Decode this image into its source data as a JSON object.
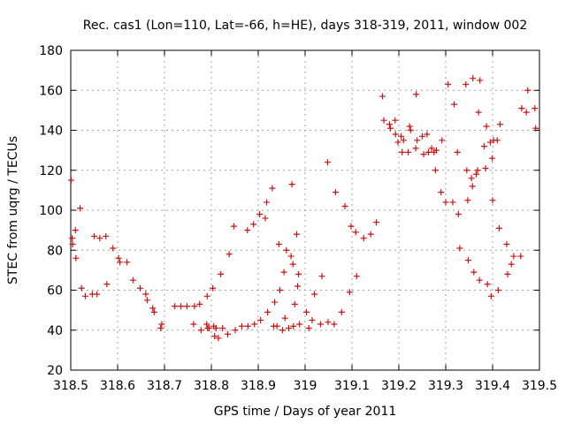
{
  "chart_data": {
    "type": "scatter",
    "title": "Rec. cas1 (Lon=110, Lat=-66, h=HE), days 318-319, 2011, window 002",
    "xlabel": "GPS time / Days of year 2011",
    "ylabel": "STEC from uqrg / TECUs",
    "xlim": [
      318.5,
      319.5
    ],
    "ylim": [
      20,
      180
    ],
    "grid": true,
    "marker": "+",
    "color": "#d01010",
    "xticks": [
      318.5,
      318.6,
      318.7,
      318.8,
      318.9,
      319,
      319.1,
      319.2,
      319.3,
      319.4,
      319.5
    ],
    "xtick_labels": [
      "318.5",
      "318.6",
      "318.7",
      "318.8",
      "318.9",
      "319",
      "319.1",
      "319.2",
      "319.3",
      "319.4",
      "319.5"
    ],
    "yticks": [
      20,
      40,
      60,
      80,
      100,
      120,
      140,
      160,
      180
    ],
    "ytick_labels": [
      "20",
      "40",
      "60",
      "80",
      "100",
      "120",
      "140",
      "160",
      "180"
    ],
    "series": [
      {
        "name": "STEC",
        "points": [
          [
            318.501,
            115
          ],
          [
            318.503,
            86
          ],
          [
            318.504,
            83
          ],
          [
            318.51,
            90
          ],
          [
            318.511,
            76
          ],
          [
            318.52,
            101
          ],
          [
            318.523,
            61
          ],
          [
            318.531,
            57
          ],
          [
            318.546,
            58
          ],
          [
            318.55,
            87
          ],
          [
            318.556,
            58
          ],
          [
            318.562,
            86
          ],
          [
            318.575,
            87
          ],
          [
            318.577,
            63
          ],
          [
            318.59,
            81
          ],
          [
            318.602,
            76
          ],
          [
            318.605,
            74
          ],
          [
            318.62,
            74
          ],
          [
            318.633,
            65
          ],
          [
            318.648,
            61
          ],
          [
            318.66,
            58
          ],
          [
            318.663,
            55
          ],
          [
            318.675,
            51
          ],
          [
            318.678,
            49
          ],
          [
            318.692,
            41
          ],
          [
            318.694,
            43
          ],
          [
            318.722,
            52
          ],
          [
            318.735,
            52
          ],
          [
            318.748,
            52
          ],
          [
            318.762,
            43
          ],
          [
            318.764,
            52
          ],
          [
            318.775,
            53
          ],
          [
            318.778,
            40
          ],
          [
            318.79,
            43
          ],
          [
            318.792,
            41
          ],
          [
            318.791,
            57
          ],
          [
            318.795,
            41
          ],
          [
            318.803,
            61
          ],
          [
            318.805,
            42
          ],
          [
            318.807,
            37
          ],
          [
            318.81,
            41
          ],
          [
            318.815,
            36
          ],
          [
            318.82,
            68
          ],
          [
            318.824,
            41
          ],
          [
            318.835,
            38
          ],
          [
            318.838,
            78
          ],
          [
            318.848,
            92
          ],
          [
            318.851,
            40
          ],
          [
            318.865,
            42
          ],
          [
            318.877,
            90
          ],
          [
            318.878,
            42
          ],
          [
            318.89,
            93
          ],
          [
            318.892,
            43
          ],
          [
            318.903,
            98
          ],
          [
            318.905,
            45
          ],
          [
            318.915,
            96
          ],
          [
            318.918,
            104
          ],
          [
            318.92,
            49
          ],
          [
            318.93,
            111
          ],
          [
            318.933,
            42
          ],
          [
            318.935,
            54
          ],
          [
            318.94,
            42
          ],
          [
            318.944,
            83
          ],
          [
            318.946,
            60
          ],
          [
            318.952,
            40
          ],
          [
            318.955,
            69
          ],
          [
            318.957,
            46
          ],
          [
            318.96,
            80
          ],
          [
            318.965,
            41
          ],
          [
            318.97,
            77
          ],
          [
            318.972,
            113
          ],
          [
            318.974,
            73
          ],
          [
            318.975,
            42
          ],
          [
            318.978,
            53
          ],
          [
            318.982,
            88
          ],
          [
            318.984,
            62
          ],
          [
            318.986,
            68
          ],
          [
            318.988,
            43
          ],
          [
            319.003,
            49
          ],
          [
            319.008,
            41
          ],
          [
            319.015,
            45
          ],
          [
            319.02,
            58
          ],
          [
            319.033,
            43
          ],
          [
            319.036,
            67
          ],
          [
            319.048,
            124
          ],
          [
            319.049,
            44
          ],
          [
            319.062,
            43
          ],
          [
            319.065,
            109
          ],
          [
            319.078,
            49
          ],
          [
            319.085,
            102
          ],
          [
            319.095,
            59
          ],
          [
            319.098,
            92
          ],
          [
            319.108,
            89
          ],
          [
            319.11,
            67
          ],
          [
            319.125,
            86
          ],
          [
            319.14,
            88
          ],
          [
            319.152,
            94
          ],
          [
            319.165,
            157
          ],
          [
            319.168,
            145
          ],
          [
            319.18,
            143
          ],
          [
            319.182,
            141
          ],
          [
            319.192,
            145
          ],
          [
            319.193,
            138
          ],
          [
            319.198,
            134
          ],
          [
            319.205,
            137
          ],
          [
            319.207,
            129
          ],
          [
            319.21,
            135
          ],
          [
            319.22,
            129
          ],
          [
            319.223,
            142
          ],
          [
            319.225,
            140
          ],
          [
            319.236,
            131
          ],
          [
            319.237,
            158
          ],
          [
            319.239,
            135
          ],
          [
            319.25,
            137
          ],
          [
            319.253,
            128
          ],
          [
            319.26,
            138
          ],
          [
            319.263,
            129
          ],
          [
            319.27,
            131
          ],
          [
            319.275,
            129
          ],
          [
            319.278,
            120
          ],
          [
            319.28,
            130
          ],
          [
            319.29,
            109
          ],
          [
            319.292,
            135
          ],
          [
            319.3,
            104
          ],
          [
            319.305,
            163
          ],
          [
            319.315,
            104
          ],
          [
            319.318,
            153
          ],
          [
            319.325,
            129
          ],
          [
            319.327,
            98
          ],
          [
            319.33,
            81
          ],
          [
            319.343,
            163
          ],
          [
            319.345,
            120
          ],
          [
            319.347,
            105
          ],
          [
            319.348,
            75
          ],
          [
            319.355,
            116
          ],
          [
            319.357,
            112
          ],
          [
            319.358,
            166
          ],
          [
            319.36,
            69
          ],
          [
            319.365,
            118
          ],
          [
            319.368,
            120
          ],
          [
            319.37,
            149
          ],
          [
            319.372,
            65
          ],
          [
            319.373,
            165
          ],
          [
            319.382,
            132
          ],
          [
            319.385,
            121
          ],
          [
            319.387,
            142
          ],
          [
            319.389,
            63
          ],
          [
            319.395,
            134
          ],
          [
            319.397,
            57
          ],
          [
            319.399,
            126
          ],
          [
            319.4,
            105
          ],
          [
            319.402,
            135
          ],
          [
            319.41,
            135
          ],
          [
            319.412,
            60
          ],
          [
            319.414,
            91
          ],
          [
            319.416,
            143
          ],
          [
            319.43,
            83
          ],
          [
            319.432,
            68
          ],
          [
            319.44,
            73
          ],
          [
            319.445,
            77
          ],
          [
            319.46,
            77
          ],
          [
            319.462,
            151
          ],
          [
            319.472,
            149
          ],
          [
            319.475,
            160
          ],
          [
            319.49,
            151
          ],
          [
            319.492,
            141
          ]
        ]
      }
    ]
  }
}
